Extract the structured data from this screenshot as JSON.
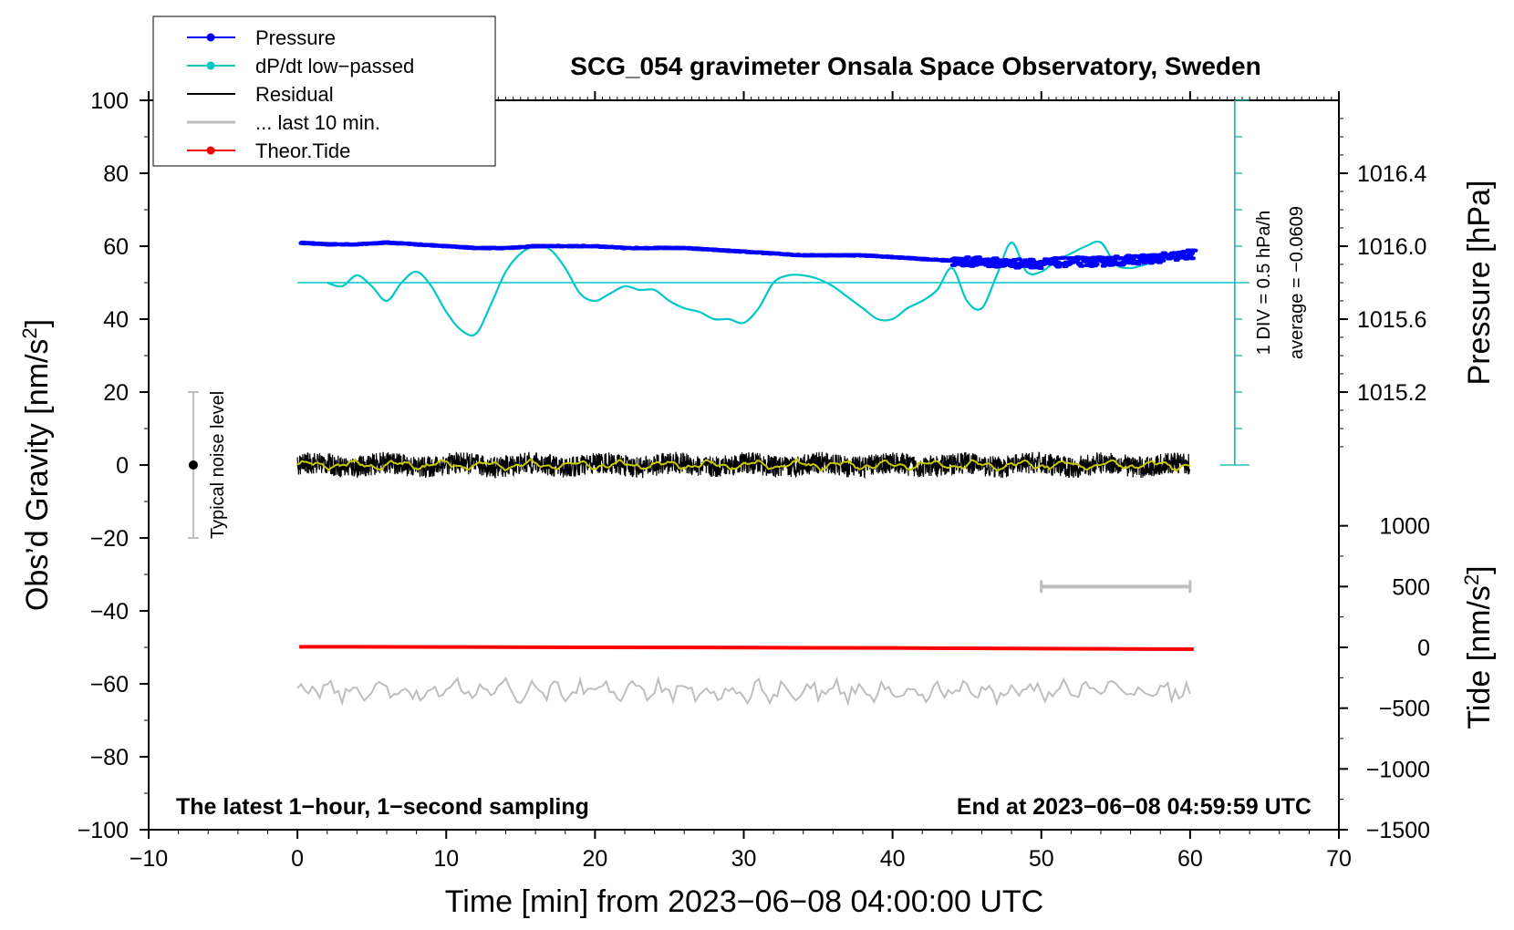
{
  "chart_data": {
    "type": "line",
    "title": "SCG_054 gravimeter Onsala Space Observatory, Sweden",
    "xlabel": "Time [min] from 2023−06−08 04:00:00 UTC",
    "ylabel_left": "Obs’d Gravity [nm/s",
    "ylabel_left_sup": "2",
    "ylabel_left_end": "]",
    "ylabel_right_top": "Pressure [hPa]",
    "ylabel_right_bottom": "Tide [nm/s",
    "ylabel_right_bottom_sup": "2",
    "ylabel_right_bottom_end": "]",
    "xlim": [
      -10,
      70
    ],
    "ylim": [
      -100,
      100
    ],
    "x_ticks": [
      -10,
      0,
      10,
      20,
      30,
      40,
      50,
      60,
      70
    ],
    "x_tick_labels": [
      "−10",
      "0",
      "10",
      "20",
      "30",
      "40",
      "50",
      "60",
      "70"
    ],
    "y_ticks": [
      100,
      80,
      60,
      40,
      20,
      0,
      -20,
      -40,
      -60,
      -80,
      -100
    ],
    "y_tick_labels": [
      "100",
      "80",
      "60",
      "40",
      "20",
      "0",
      "−20",
      "−40",
      "−60",
      "−80",
      "−100"
    ],
    "pressure_axis": {
      "ticks": [
        1016.4,
        1016.0,
        1015.6,
        1015.2
      ],
      "tick_labels": [
        "1016.4",
        "1016.0",
        "1015.6",
        "1015.2"
      ],
      "range": [
        1014.8,
        1016.8
      ]
    },
    "tide_axis": {
      "ticks": [
        1000,
        500,
        0,
        -500,
        -1000,
        -1500
      ],
      "tick_labels": [
        "1000",
        "500",
        "0",
        "−500",
        "−1000",
        "−1500"
      ],
      "range": [
        -1500,
        1500
      ]
    },
    "legend": [
      {
        "label": "Pressure",
        "color": "#0000ff",
        "marker": "dot"
      },
      {
        "label": "dP/dt low−passed",
        "color": "#00c8c8",
        "marker": "dot"
      },
      {
        "label": "Residual",
        "color": "#000000",
        "marker": "none"
      },
      {
        "label": "... last 10 min.",
        "color": "#bebebe",
        "marker": "none"
      },
      {
        "label": "Theor.Tide",
        "color": "#ff0000",
        "marker": "dot"
      }
    ],
    "pressure_series": {
      "name": "Pressure",
      "unit": "hPa",
      "x": [
        0,
        2,
        4,
        6,
        8,
        10,
        12,
        14,
        16,
        18,
        20,
        22,
        24,
        26,
        28,
        30,
        32,
        34,
        36,
        38,
        40,
        42,
        44,
        46,
        48,
        50,
        52,
        54,
        56,
        58,
        60
      ],
      "y": [
        1016.02,
        1016.01,
        1016.01,
        1016.02,
        1016.01,
        1016.0,
        1015.99,
        1015.99,
        1016.0,
        1016.0,
        1016.0,
        1015.99,
        1015.99,
        1015.99,
        1015.98,
        1015.97,
        1015.96,
        1015.95,
        1015.95,
        1015.95,
        1015.94,
        1015.93,
        1015.92,
        1015.92,
        1015.91,
        1015.91,
        1015.92,
        1015.92,
        1015.93,
        1015.94,
        1015.96
      ]
    },
    "dpdt_series": {
      "name": "dP/dt low−passed",
      "unit": "nm/s2 equivalent",
      "x": [
        2,
        3,
        4,
        5,
        6,
        7,
        8,
        9,
        10,
        11,
        12,
        13,
        14,
        15,
        16,
        17,
        18,
        19,
        20,
        21,
        22,
        23,
        24,
        25,
        26,
        27,
        28,
        29,
        30,
        31,
        32,
        33,
        34,
        35,
        36,
        37,
        38,
        39,
        40,
        41,
        42,
        43,
        44,
        45,
        46,
        47,
        48,
        49,
        50,
        51,
        52,
        53,
        54,
        55,
        56,
        57,
        58,
        59,
        60
      ],
      "y": [
        50,
        49,
        52,
        49,
        45,
        50,
        53,
        49,
        42,
        37,
        36,
        44,
        53,
        58,
        60,
        59,
        54,
        47,
        45,
        47,
        49,
        48,
        48,
        45,
        43,
        42,
        40,
        40,
        39,
        43,
        50,
        52,
        52,
        51,
        49,
        46,
        43,
        40,
        40,
        43,
        45,
        48,
        54,
        45,
        43,
        52,
        61,
        53,
        53,
        56,
        58,
        60,
        61,
        55,
        54,
        55,
        56,
        57,
        57
      ]
    },
    "dpdt_average": -0.0609,
    "dpdt_average_text": "average = −0.0609",
    "dpdt_scale_text": "1 DIV = 0.5 hPa/h",
    "dpdt_baseline": 50,
    "residual_series": {
      "name": "Residual",
      "unit": "nm/s2",
      "x_range": [
        0,
        60
      ],
      "amplitude": 3,
      "mean": 0
    },
    "last10_series": {
      "name": "... last 10 min.",
      "unit": "nm/s2",
      "offset": -62,
      "amplitude": 3,
      "x_range": [
        0,
        60
      ]
    },
    "tide_series": {
      "name": "Theor.Tide",
      "unit": "nm/s2",
      "x": [
        0,
        10,
        20,
        30,
        40,
        50,
        60
      ],
      "y": [
        5,
        3,
        0,
        -2,
        -5,
        -10,
        -15
      ]
    },
    "noise_level": {
      "label": "Typical noise level",
      "x": -7,
      "center": 0,
      "half_range": 20
    },
    "last10_bracket": {
      "x_start": 50,
      "x_end": 60,
      "tide_value": 500
    },
    "annotation_left": "The latest 1−hour, 1−second sampling",
    "annotation_right": "End at 2023−06−08 04:59:59 UTC"
  },
  "colors": {
    "pressure": "#0000ff",
    "dpdt": "#00c8c8",
    "residual": "#000000",
    "residual_smooth": "#c8c800",
    "last10": "#bebebe",
    "tide": "#ff0000",
    "pressure_axis": "#00b0b0"
  }
}
